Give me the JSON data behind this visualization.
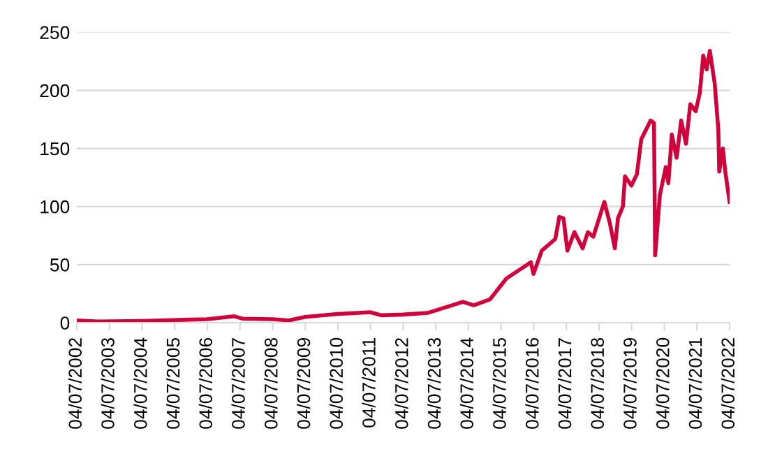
{
  "chart_data": {
    "type": "line",
    "x": [
      "2002-07-04",
      "2003-03-01",
      "2004-07-01",
      "2006-07-01",
      "2007-05-01",
      "2007-08-01",
      "2008-07-01",
      "2009-01-01",
      "2009-07-01",
      "2010-07-01",
      "2011-07-01",
      "2011-11-01",
      "2012-07-01",
      "2013-04-01",
      "2014-01-01",
      "2014-05-01",
      "2014-09-01",
      "2015-03-01",
      "2015-09-01",
      "2016-06-01",
      "2016-07-01",
      "2016-10-01",
      "2017-03-01",
      "2017-04-15",
      "2017-06-01",
      "2017-07-15",
      "2017-10-01",
      "2018-01-01",
      "2018-03-01",
      "2018-05-01",
      "2018-09-01",
      "2018-11-01",
      "2018-12-28",
      "2019-02-01",
      "2019-03-28",
      "2019-04-20",
      "2019-07-01",
      "2019-09-01",
      "2019-10-20",
      "2020-02-01",
      "2020-03-10",
      "2020-03-23",
      "2020-05-15",
      "2020-07-20",
      "2020-08-18",
      "2020-09-25",
      "2020-11-18",
      "2021-01-08",
      "2021-03-03",
      "2021-04-20",
      "2021-06-20",
      "2021-08-05",
      "2021-09-12",
      "2021-10-20",
      "2021-11-25",
      "2022-01-18",
      "2022-02-28",
      "2022-03-10",
      "2022-04-20",
      "2022-05-15",
      "2022-07-04"
    ],
    "series": [
      {
        "color": "#d0023c",
        "values": [
          2,
          1,
          1.5,
          3,
          5.5,
          3.5,
          3,
          2,
          5,
          7.5,
          9,
          6.4,
          7,
          8.4,
          15,
          18,
          15,
          20,
          38,
          52,
          42,
          62,
          72,
          91,
          90,
          62,
          78,
          64,
          78,
          74,
          104,
          86,
          64,
          90,
          100,
          126,
          118,
          128,
          158,
          174,
          172,
          58,
          110,
          134,
          120,
          162,
          142,
          174,
          154,
          188,
          182,
          198,
          230,
          218,
          234,
          206,
          166,
          130,
          150,
          131,
          104
        ]
      }
    ],
    "xlim": [
      "2002-07-04",
      "2022-07-04"
    ],
    "xticks": [
      {
        "value": "2002-07-04",
        "label": "04/07/2002"
      },
      {
        "value": "2003-07-04",
        "label": "04/07/2003"
      },
      {
        "value": "2004-07-04",
        "label": "04/07/2004"
      },
      {
        "value": "2005-07-04",
        "label": "04/07/2005"
      },
      {
        "value": "2006-07-04",
        "label": "04/07/2006"
      },
      {
        "value": "2007-07-04",
        "label": "04/07/2007"
      },
      {
        "value": "2008-07-04",
        "label": "04/07/2008"
      },
      {
        "value": "2009-07-04",
        "label": "04/07/2009"
      },
      {
        "value": "2010-07-04",
        "label": "04/07/2010"
      },
      {
        "value": "2011-07-04",
        "label": "04/07/2011"
      },
      {
        "value": "2012-07-04",
        "label": "04/07/2012"
      },
      {
        "value": "2013-07-04",
        "label": "04/07/2013"
      },
      {
        "value": "2014-07-04",
        "label": "04/07/2014"
      },
      {
        "value": "2015-07-04",
        "label": "04/07/2015"
      },
      {
        "value": "2016-07-04",
        "label": "04/07/2016"
      },
      {
        "value": "2017-07-04",
        "label": "04/07/2017"
      },
      {
        "value": "2018-07-04",
        "label": "04/07/2018"
      },
      {
        "value": "2019-07-04",
        "label": "04/07/2019"
      },
      {
        "value": "2020-07-04",
        "label": "04/07/2020"
      },
      {
        "value": "2021-07-04",
        "label": "04/07/2021"
      },
      {
        "value": "2022-07-04",
        "label": "04/07/2022"
      }
    ],
    "ylim": [
      0,
      250
    ],
    "yticks": [
      0,
      50,
      100,
      150,
      200,
      250
    ],
    "grid": "y",
    "legend": false,
    "marker": "none",
    "line_style": "solid"
  }
}
